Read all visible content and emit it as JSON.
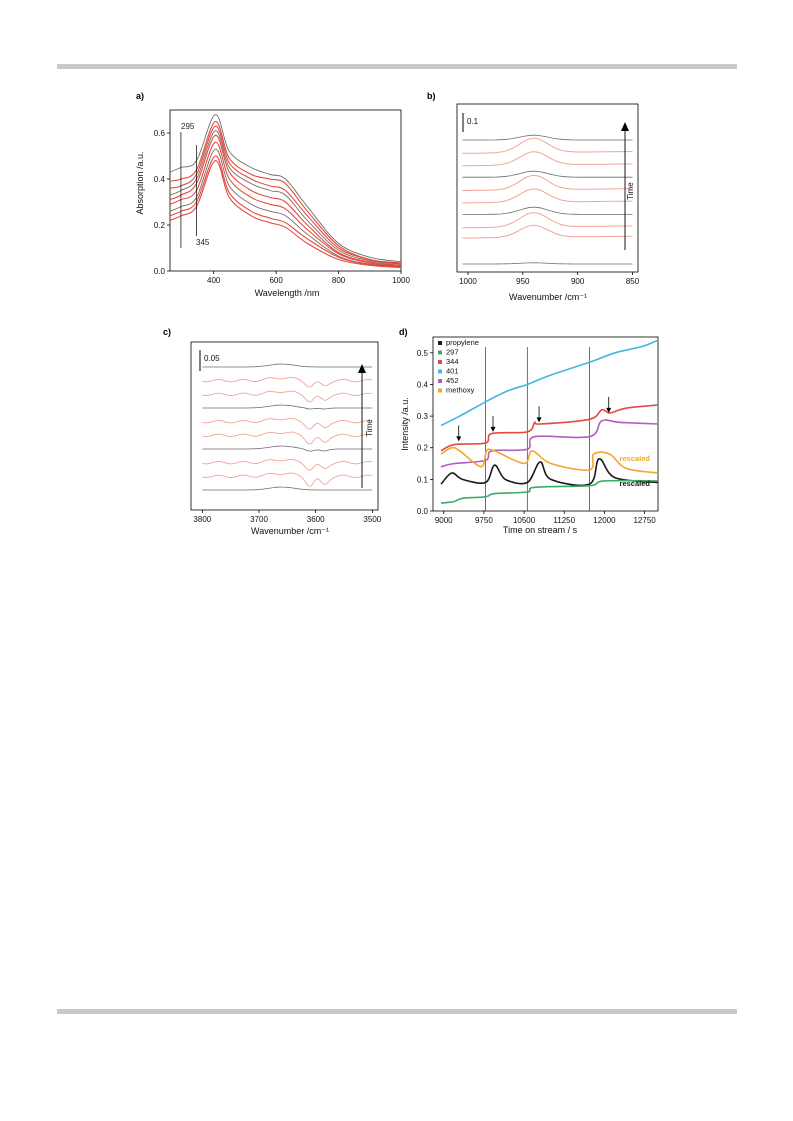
{
  "page": {
    "top_rule_color": "#c8c8cc",
    "bottom_rule_color": "#c8c8cc"
  },
  "colors": {
    "gray": "#6e6e6e",
    "red": "#e64a3c",
    "light_red": "#f4a497",
    "black": "#1a1a1a",
    "green": "#3aaa6a",
    "blue": "#41b6e6",
    "purple": "#b45cc0",
    "orange": "#f2a531"
  },
  "chart_data": [
    {
      "panel_label": "a)",
      "type": "line",
      "xlabel": "Wavelength /nm",
      "ylabel": "Absorption /a.u.",
      "xlim": [
        260,
        1000
      ],
      "ylim": [
        0,
        0.7
      ],
      "xticks": [
        400,
        600,
        800,
        1000
      ],
      "yticks": [
        0.0,
        0.2,
        0.4,
        0.6
      ],
      "ytick_labels": [
        "0.0",
        "0.2",
        "0.4",
        "0.6"
      ],
      "annotations": [
        {
          "text": "295",
          "x": 295
        },
        {
          "text": "345",
          "x": 345
        }
      ],
      "series": [
        {
          "color": "gray",
          "values": [
            [
              260,
              0.43
            ],
            [
              295,
              0.45
            ],
            [
              345,
              0.48
            ],
            [
              405,
              0.68
            ],
            [
              450,
              0.52
            ],
            [
              520,
              0.45
            ],
            [
              580,
              0.42
            ],
            [
              630,
              0.4
            ],
            [
              700,
              0.28
            ],
            [
              800,
              0.12
            ],
            [
              900,
              0.06
            ],
            [
              1000,
              0.04
            ]
          ]
        },
        {
          "color": "red",
          "values": [
            [
              260,
              0.39
            ],
            [
              295,
              0.4
            ],
            [
              345,
              0.44
            ],
            [
              405,
              0.65
            ],
            [
              450,
              0.49
            ],
            [
              520,
              0.42
            ],
            [
              580,
              0.4
            ],
            [
              630,
              0.38
            ],
            [
              700,
              0.26
            ],
            [
              800,
              0.11
            ],
            [
              900,
              0.05
            ],
            [
              1000,
              0.035
            ]
          ]
        },
        {
          "color": "red",
          "values": [
            [
              260,
              0.36
            ],
            [
              295,
              0.37
            ],
            [
              345,
              0.42
            ],
            [
              405,
              0.63
            ],
            [
              450,
              0.47
            ],
            [
              520,
              0.4
            ],
            [
              580,
              0.37
            ],
            [
              630,
              0.35
            ],
            [
              700,
              0.24
            ],
            [
              800,
              0.1
            ],
            [
              900,
              0.05
            ],
            [
              1000,
              0.03
            ]
          ]
        },
        {
          "color": "gray",
          "values": [
            [
              260,
              0.33
            ],
            [
              295,
              0.35
            ],
            [
              345,
              0.4
            ],
            [
              405,
              0.61
            ],
            [
              450,
              0.45
            ],
            [
              520,
              0.38
            ],
            [
              580,
              0.35
            ],
            [
              630,
              0.33
            ],
            [
              700,
              0.22
            ],
            [
              800,
              0.09
            ],
            [
              900,
              0.045
            ],
            [
              1000,
              0.03
            ]
          ]
        },
        {
          "color": "red",
          "values": [
            [
              260,
              0.31
            ],
            [
              295,
              0.33
            ],
            [
              345,
              0.38
            ],
            [
              405,
              0.59
            ],
            [
              450,
              0.43
            ],
            [
              520,
              0.35
            ],
            [
              580,
              0.32
            ],
            [
              630,
              0.3
            ],
            [
              700,
              0.2
            ],
            [
              800,
              0.08
            ],
            [
              900,
              0.04
            ],
            [
              1000,
              0.025
            ]
          ]
        },
        {
          "color": "red",
          "values": [
            [
              260,
              0.29
            ],
            [
              295,
              0.31
            ],
            [
              345,
              0.35
            ],
            [
              405,
              0.56
            ],
            [
              450,
              0.4
            ],
            [
              520,
              0.32
            ],
            [
              580,
              0.29
            ],
            [
              630,
              0.27
            ],
            [
              700,
              0.18
            ],
            [
              800,
              0.075
            ],
            [
              900,
              0.035
            ],
            [
              1000,
              0.022
            ]
          ]
        },
        {
          "color": "gray",
          "values": [
            [
              260,
              0.26
            ],
            [
              295,
              0.28
            ],
            [
              345,
              0.32
            ],
            [
              405,
              0.53
            ],
            [
              450,
              0.37
            ],
            [
              520,
              0.29
            ],
            [
              580,
              0.26
            ],
            [
              630,
              0.24
            ],
            [
              700,
              0.16
            ],
            [
              800,
              0.065
            ],
            [
              900,
              0.03
            ],
            [
              1000,
              0.02
            ]
          ]
        },
        {
          "color": "red",
          "values": [
            [
              260,
              0.24
            ],
            [
              295,
              0.26
            ],
            [
              345,
              0.3
            ],
            [
              405,
              0.5
            ],
            [
              450,
              0.34
            ],
            [
              520,
              0.26
            ],
            [
              580,
              0.23
            ],
            [
              630,
              0.21
            ],
            [
              700,
              0.14
            ],
            [
              800,
              0.06
            ],
            [
              900,
              0.028
            ],
            [
              1000,
              0.018
            ]
          ]
        },
        {
          "color": "red",
          "values": [
            [
              260,
              0.22
            ],
            [
              295,
              0.24
            ],
            [
              345,
              0.28
            ],
            [
              405,
              0.48
            ],
            [
              450,
              0.32
            ],
            [
              520,
              0.24
            ],
            [
              580,
              0.21
            ],
            [
              630,
              0.19
            ],
            [
              700,
              0.12
            ],
            [
              800,
              0.05
            ],
            [
              900,
              0.025
            ],
            [
              1000,
              0.015
            ]
          ]
        }
      ]
    },
    {
      "panel_label": "b)",
      "type": "line",
      "xlabel": "Wavenumber /cm⁻¹",
      "ylabel": "Time",
      "scale_bar": "0.1",
      "xlim": [
        1010,
        845
      ],
      "xticks": [
        1000,
        950,
        900,
        850
      ],
      "offset_traces": [
        {
          "color": "gray",
          "baseline": 0.0,
          "peak": 0.01
        },
        {
          "color": "red",
          "baseline": 0.13,
          "peak": 0.1
        },
        {
          "color": "red",
          "baseline": 0.18,
          "peak": 0.12
        },
        {
          "color": "gray",
          "baseline": 0.24,
          "peak": 0.06
        },
        {
          "color": "red",
          "baseline": 0.3,
          "peak": 0.11
        },
        {
          "color": "red",
          "baseline": 0.36,
          "peak": 0.12
        },
        {
          "color": "gray",
          "baseline": 0.42,
          "peak": 0.05
        },
        {
          "color": "red",
          "baseline": 0.48,
          "peak": 0.11
        },
        {
          "color": "red",
          "baseline": 0.54,
          "peak": 0.12
        },
        {
          "color": "gray",
          "baseline": 0.6,
          "peak": 0.04
        }
      ]
    },
    {
      "panel_label": "c)",
      "type": "line",
      "xlabel": "Wavenumber /cm⁻¹",
      "ylabel": "Time",
      "scale_bar": "0.05",
      "xlim": [
        3820,
        3490
      ],
      "xticks": [
        3800,
        3700,
        3600,
        3500
      ],
      "offset_traces": [
        {
          "color": "gray",
          "baseline": 0.0,
          "dip": 0.0
        },
        {
          "color": "red",
          "baseline": 0.03,
          "dip": 0.04
        },
        {
          "color": "red",
          "baseline": 0.06,
          "dip": 0.03
        },
        {
          "color": "gray",
          "baseline": 0.09,
          "dip": 0.01
        },
        {
          "color": "red",
          "baseline": 0.12,
          "dip": 0.035
        },
        {
          "color": "red",
          "baseline": 0.15,
          "dip": 0.03
        },
        {
          "color": "gray",
          "baseline": 0.18,
          "dip": 0.005
        },
        {
          "color": "red",
          "baseline": 0.21,
          "dip": 0.03
        },
        {
          "color": "red",
          "baseline": 0.24,
          "dip": 0.025
        },
        {
          "color": "gray",
          "baseline": 0.27,
          "dip": 0.0
        }
      ]
    },
    {
      "panel_label": "d)",
      "type": "line",
      "xlabel": "Time on stream / s",
      "ylabel": "Intensity /a.u.",
      "xlim": [
        8800,
        13000
      ],
      "ylim": [
        0,
        0.55
      ],
      "xticks": [
        9000,
        9750,
        10500,
        11250,
        12000,
        12750
      ],
      "yticks": [
        0.0,
        0.1,
        0.2,
        0.3,
        0.4,
        0.5
      ],
      "ytick_labels": [
        "0.0",
        "0.1",
        "0.2",
        "0.3",
        "0.4",
        "0.5"
      ],
      "vlines": [
        9780,
        10560,
        11720
      ],
      "arrows": [
        [
          9280,
          0.22
        ],
        [
          9920,
          0.25
        ],
        [
          10780,
          0.28
        ],
        [
          12080,
          0.31
        ]
      ],
      "rescaled_labels": [
        {
          "text": "rescaled",
          "color": "orange"
        },
        {
          "text": "rescaled",
          "color": "black"
        }
      ],
      "series": [
        {
          "name": "propylene",
          "color": "black",
          "values": [
            [
              8950,
              0.085
            ],
            [
              9150,
              0.12
            ],
            [
              9350,
              0.1
            ],
            [
              9780,
              0.09
            ],
            [
              9950,
              0.145
            ],
            [
              10150,
              0.1
            ],
            [
              10560,
              0.09
            ],
            [
              10800,
              0.155
            ],
            [
              11000,
              0.1
            ],
            [
              11720,
              0.085
            ],
            [
              11900,
              0.165
            ],
            [
              12200,
              0.105
            ],
            [
              13000,
              0.09
            ]
          ]
        },
        {
          "name": "297",
          "color": "green",
          "values": [
            [
              8950,
              0.025
            ],
            [
              9200,
              0.03
            ],
            [
              9350,
              0.04
            ],
            [
              9780,
              0.045
            ],
            [
              9950,
              0.055
            ],
            [
              10560,
              0.06
            ],
            [
              10700,
              0.075
            ],
            [
              11720,
              0.08
            ],
            [
              12000,
              0.095
            ],
            [
              13000,
              0.095
            ]
          ]
        },
        {
          "name": "344",
          "color": "red",
          "values": [
            [
              8950,
              0.19
            ],
            [
              9200,
              0.21
            ],
            [
              9780,
              0.215
            ],
            [
              9900,
              0.245
            ],
            [
              10560,
              0.25
            ],
            [
              10700,
              0.28
            ],
            [
              10800,
              0.275
            ],
            [
              11720,
              0.29
            ],
            [
              11950,
              0.32
            ],
            [
              12100,
              0.31
            ],
            [
              12400,
              0.325
            ],
            [
              13000,
              0.335
            ]
          ]
        },
        {
          "name": "401",
          "color": "blue",
          "values": [
            [
              8950,
              0.27
            ],
            [
              9300,
              0.3
            ],
            [
              9780,
              0.345
            ],
            [
              10200,
              0.38
            ],
            [
              10560,
              0.4
            ],
            [
              11000,
              0.43
            ],
            [
              11720,
              0.47
            ],
            [
              12200,
              0.5
            ],
            [
              12700,
              0.52
            ],
            [
              13000,
              0.54
            ]
          ]
        },
        {
          "name": "452",
          "color": "purple",
          "values": [
            [
              8950,
              0.14
            ],
            [
              9200,
              0.15
            ],
            [
              9780,
              0.16
            ],
            [
              9900,
              0.19
            ],
            [
              10560,
              0.195
            ],
            [
              10700,
              0.235
            ],
            [
              11720,
              0.235
            ],
            [
              11950,
              0.285
            ],
            [
              12300,
              0.28
            ],
            [
              13000,
              0.275
            ]
          ]
        },
        {
          "name": "methoxy",
          "color": "orange",
          "values": [
            [
              8950,
              0.18
            ],
            [
              9150,
              0.2
            ],
            [
              9300,
              0.19
            ],
            [
              9700,
              0.14
            ],
            [
              9800,
              0.19
            ],
            [
              9950,
              0.19
            ],
            [
              10500,
              0.15
            ],
            [
              10650,
              0.19
            ],
            [
              11000,
              0.15
            ],
            [
              11720,
              0.13
            ],
            [
              11800,
              0.18
            ],
            [
              12100,
              0.18
            ],
            [
              12400,
              0.135
            ],
            [
              13000,
              0.12
            ]
          ]
        }
      ]
    }
  ]
}
